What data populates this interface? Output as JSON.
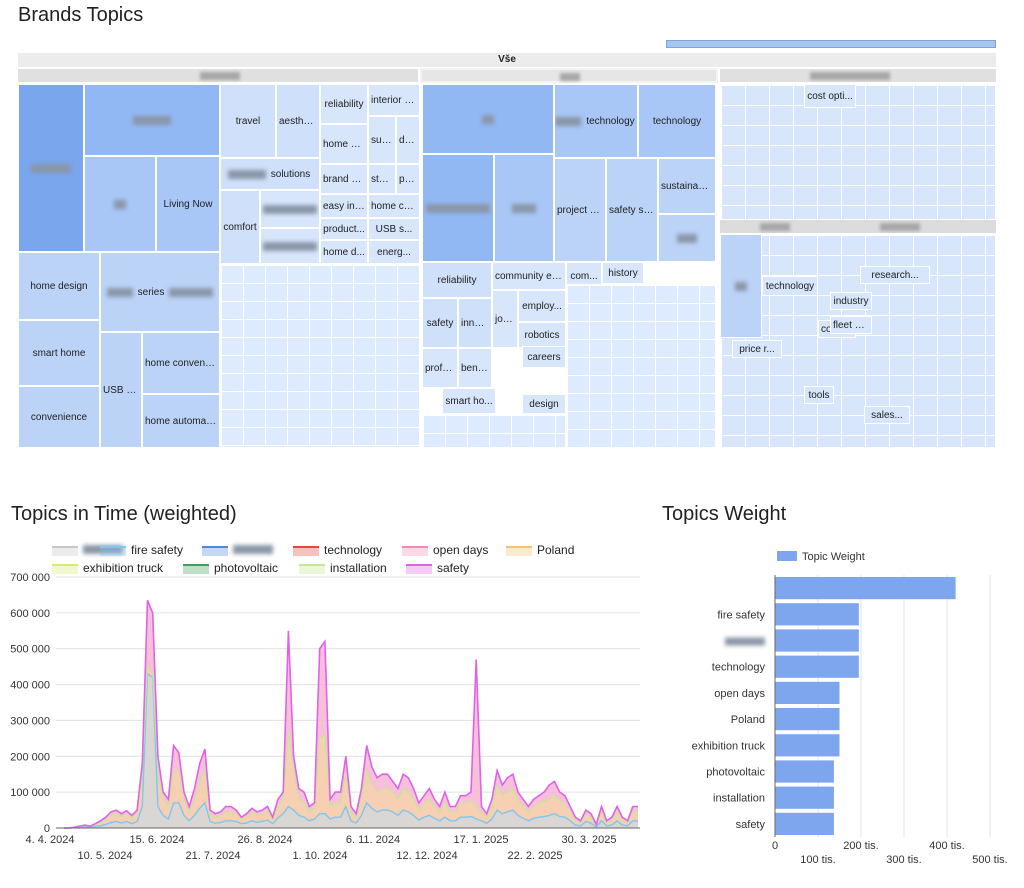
{
  "treemap": {
    "title": "Brands Topics",
    "root_label": "Vše",
    "cells": [
      {
        "label": "",
        "blurred": true,
        "color": "#7aa6ee"
      },
      {
        "label": "",
        "blurred": true,
        "color": "#92b8f3"
      },
      {
        "label": "",
        "blurred": true,
        "color": "#a8c6f6"
      },
      {
        "label": "Living Now",
        "color": "#a8c6f6"
      },
      {
        "label": "home design",
        "color": "#bcd3f8"
      },
      {
        "label": "series",
        "color": "#bcd3f8"
      },
      {
        "label": "smart home",
        "color": "#bcd3f8"
      },
      {
        "label": "USB sol...",
        "color": "#bcd3f8"
      },
      {
        "label": "home convenie...",
        "color": "#bcd3f8"
      },
      {
        "label": "convenience",
        "color": "#bcd3f8"
      },
      {
        "label": "home automati...",
        "color": "#bcd3f8"
      },
      {
        "label": "travel",
        "color": "#cfe0fb"
      },
      {
        "label": "aesthetic",
        "color": "#cfe0fb"
      },
      {
        "label": "reliability",
        "color": "#d8e6fc"
      },
      {
        "label": "interior de...",
        "color": "#d8e6fc"
      },
      {
        "label": "home so...",
        "color": "#d8e6fc"
      },
      {
        "label": "sum...",
        "color": "#d8e6fc"
      },
      {
        "label": "desi...",
        "color": "#d8e6fc"
      },
      {
        "label": "solutions",
        "color": "#cfe0fb"
      },
      {
        "label": "brand a...",
        "color": "#d8e6fc"
      },
      {
        "label": "star...",
        "color": "#d8e6fc"
      },
      {
        "label": "prod...",
        "color": "#d8e6fc"
      },
      {
        "label": "comfort",
        "color": "#cfe0fb"
      },
      {
        "label": "easy ins...",
        "color": "#d8e6fc"
      },
      {
        "label": "home co...",
        "color": "#d8e6fc"
      },
      {
        "label": "product...",
        "color": "#d8e6fc"
      },
      {
        "label": "USB s...",
        "color": "#d8e6fc"
      },
      {
        "label": "home d...",
        "color": "#d8e6fc"
      },
      {
        "label": "energ...",
        "color": "#d8e6fc"
      },
      {
        "label": "technology",
        "color": "#a8c6f6"
      },
      {
        "label": "technology",
        "color": "#a8c6f6"
      },
      {
        "label": "sustainabil...",
        "color": "#bcd3f8"
      },
      {
        "label": "project ef...",
        "color": "#bcd3f8"
      },
      {
        "label": "safety sol...",
        "color": "#bcd3f8"
      },
      {
        "label": "reliability",
        "color": "#cfe0fb"
      },
      {
        "label": "community en...",
        "color": "#d8e6fc"
      },
      {
        "label": "com...",
        "color": "#d8e6fc"
      },
      {
        "label": "history",
        "color": "#d8e6fc"
      },
      {
        "label": "safety",
        "color": "#cfe0fb"
      },
      {
        "label": "innov...",
        "color": "#cfe0fb"
      },
      {
        "label": "job...",
        "color": "#d8e6fc"
      },
      {
        "label": "employ...",
        "color": "#d8e6fc"
      },
      {
        "label": "robotics",
        "color": "#d8e6fc"
      },
      {
        "label": "profes...",
        "color": "#d8e6fc"
      },
      {
        "label": "benefi...",
        "color": "#d8e6fc"
      },
      {
        "label": "careers",
        "color": "#d8e6fc"
      },
      {
        "label": "smart ho...",
        "color": "#d8e6fc"
      },
      {
        "label": "design",
        "color": "#d8e6fc"
      },
      {
        "label": "cost opti...",
        "color": "#d8e6fc"
      },
      {
        "label": "technology",
        "color": "#d8e6fc"
      },
      {
        "label": "contest",
        "color": "#d8e6fc"
      },
      {
        "label": "industry",
        "color": "#d8e6fc"
      },
      {
        "label": "fleet m...",
        "color": "#d8e6fc"
      },
      {
        "label": "research...",
        "color": "#d8e6fc"
      },
      {
        "label": "sales...",
        "color": "#d8e6fc"
      },
      {
        "label": "tools",
        "color": "#d8e6fc"
      },
      {
        "label": "price r...",
        "color": "#d8e6fc"
      }
    ]
  },
  "line": {
    "title": "Topics in Time (weighted)",
    "legend": [
      {
        "name": "",
        "blurred": true,
        "color": "#c7c7c7"
      },
      {
        "name": "fire safety",
        "color": "#7fc6f2"
      },
      {
        "name": "",
        "blurred": true,
        "color": "#4f86e0"
      },
      {
        "name": "technology",
        "color": "#e5473b"
      },
      {
        "name": "open days",
        "color": "#f28bb0"
      },
      {
        "name": "Poland",
        "color": "#f2c46b"
      },
      {
        "name": "exhibition truck",
        "color": "#d8ea6a"
      },
      {
        "name": "photovoltaic",
        "color": "#3f9e5a"
      },
      {
        "name": "installation",
        "color": "#bfeb8e"
      },
      {
        "name": "safety",
        "color": "#e062e8"
      }
    ]
  },
  "bar": {
    "title": "Topics Weight",
    "legend_label": "Topic Weight",
    "color": "#7da6ee"
  },
  "chart_data": [
    {
      "type": "area",
      "title": "Topics in Time (weighted)",
      "xlabel": "",
      "ylabel": "",
      "ylim": [
        0,
        700000
      ],
      "yticks": [
        "0",
        "100 000",
        "200 000",
        "300 000",
        "400 000",
        "500 000",
        "600 000",
        "700 000"
      ],
      "xticks_row1": [
        "4. 4. 2024",
        "15. 6. 2024",
        "26. 8. 2024",
        "6. 11. 2024",
        "17. 1. 2025",
        "30. 3. 2025"
      ],
      "xticks_row2": [
        "10. 5. 2024",
        "21. 7. 2024",
        "1. 10. 2024",
        "12. 12. 2024",
        "22. 2. 2025"
      ],
      "total_safety": [
        0,
        0,
        2,
        5,
        8,
        5,
        12,
        20,
        30,
        45,
        50,
        40,
        48,
        35,
        50,
        180,
        635,
        600,
        200,
        100,
        80,
        230,
        210,
        100,
        60,
        110,
        180,
        220,
        50,
        40,
        45,
        60,
        60,
        50,
        30,
        40,
        55,
        45,
        50,
        60,
        30,
        80,
        100,
        550,
        200,
        110,
        100,
        60,
        70,
        500,
        520,
        80,
        100,
        100,
        200,
        60,
        40,
        110,
        230,
        170,
        140,
        150,
        150,
        130,
        110,
        150,
        140,
        110,
        70,
        90,
        110,
        80,
        60,
        100,
        60,
        60,
        90,
        90,
        100,
        470,
        60,
        40,
        80,
        160,
        120,
        140,
        150,
        100,
        80,
        60,
        80,
        90,
        100,
        120,
        130,
        100,
        90,
        60,
        30,
        20,
        50,
        40,
        10,
        60,
        20,
        30,
        60,
        30,
        20,
        60,
        60
      ],
      "total_stacked": [
        0,
        0,
        2,
        4,
        6,
        4,
        10,
        15,
        22,
        35,
        40,
        32,
        40,
        28,
        40,
        150,
        450,
        430,
        150,
        80,
        60,
        160,
        160,
        80,
        45,
        80,
        130,
        160,
        40,
        30,
        35,
        45,
        45,
        40,
        25,
        30,
        45,
        35,
        40,
        50,
        25,
        60,
        80,
        270,
        160,
        80,
        70,
        45,
        55,
        250,
        260,
        60,
        70,
        70,
        150,
        45,
        30,
        80,
        160,
        120,
        100,
        110,
        110,
        100,
        80,
        110,
        100,
        80,
        50,
        70,
        80,
        60,
        45,
        70,
        45,
        45,
        70,
        70,
        75,
        60,
        45,
        30,
        60,
        120,
        90,
        100,
        110,
        80,
        60,
        45,
        60,
        70,
        75,
        80,
        90,
        75,
        70,
        45,
        20,
        15,
        40,
        30,
        8,
        45,
        15,
        20,
        45,
        20,
        15,
        45,
        45
      ],
      "blue_series": [
        0,
        0,
        1,
        2,
        3,
        2,
        5,
        6,
        10,
        15,
        18,
        14,
        18,
        12,
        18,
        60,
        430,
        420,
        60,
        35,
        25,
        70,
        70,
        35,
        20,
        35,
        55,
        70,
        18,
        13,
        15,
        20,
        20,
        18,
        12,
        14,
        20,
        16,
        18,
        22,
        12,
        28,
        40,
        60,
        50,
        35,
        30,
        20,
        25,
        40,
        40,
        25,
        30,
        30,
        60,
        20,
        14,
        35,
        70,
        55,
        45,
        50,
        50,
        45,
        35,
        50,
        45,
        35,
        22,
        30,
        35,
        27,
        20,
        30,
        20,
        20,
        30,
        30,
        32,
        25,
        20,
        13,
        25,
        50,
        40,
        45,
        50,
        35,
        27,
        20,
        27,
        30,
        32,
        35,
        40,
        32,
        30,
        20,
        8,
        6,
        18,
        13,
        3,
        20,
        6,
        8,
        20,
        8,
        6,
        20,
        20
      ]
    },
    {
      "type": "bar",
      "title": "Topics Weight",
      "series": [
        {
          "name": "Topic Weight",
          "values": [
            420000,
            195000,
            195000,
            195000,
            150000,
            150000,
            150000,
            137000,
            137000,
            137000
          ]
        }
      ],
      "categories": [
        "",
        "fire safety",
        "",
        "technology",
        "open days",
        "Poland",
        "exhibition truck",
        "photovoltaic",
        "installation",
        "safety"
      ],
      "xlim": [
        0,
        500000
      ],
      "xticks_top": [
        "0",
        "200 tis.",
        "400 tis."
      ],
      "xticks_bottom": [
        "100 tis.",
        "300 tis.",
        "500 tis."
      ]
    }
  ]
}
